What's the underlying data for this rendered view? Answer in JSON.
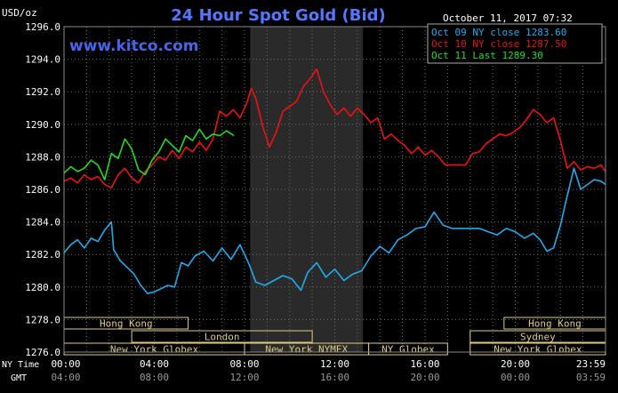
{
  "header": {
    "unit": "USD/oz",
    "title": "24 Hour Spot Gold (Bid)",
    "date": "October 11, 2017 07:32",
    "watermark": "www.kitco.com"
  },
  "colors": {
    "background": "#000000",
    "grid": "#6e6e6e",
    "title": "#5577ff",
    "watermark": "#4466ee",
    "series_oct09": "#22aaee",
    "series_oct10": "#ee1111",
    "series_oct11": "#22dd22",
    "nymex_band": "#2a2a2a",
    "market_box": "#ddcc88"
  },
  "chart_data": {
    "type": "line",
    "title": "24 Hour Spot Gold (Bid)",
    "ylabel": "USD/oz",
    "ylim": [
      1276.0,
      1296.0
    ],
    "yticks": [
      "1276.0",
      "1278.0",
      "1280.0",
      "1282.0",
      "1284.0",
      "1286.0",
      "1288.0",
      "1290.0",
      "1292.0",
      "1294.0",
      "1296.0"
    ],
    "xlim_hours": [
      0,
      24
    ],
    "x_ticks_ny": [
      "00:00",
      "04:00",
      "08:00",
      "12:00",
      "16:00",
      "20:00",
      "23:59"
    ],
    "x_ticks_gmt": [
      "04:00",
      "08:00",
      "12:00",
      "16:00",
      "20:00",
      "00:00",
      "03:59"
    ],
    "x_axis_labels": {
      "ny": "NY Time",
      "gmt": "GMT"
    },
    "legend_position": "top-right",
    "legend": [
      {
        "text": "Oct 09 NY close 1283.60",
        "series": 0
      },
      {
        "text": "Oct 10 NY close 1287.50",
        "series": 1
      },
      {
        "text": "Oct 11 Last 1289.30",
        "series": 2
      }
    ],
    "series": [
      {
        "name": "Oct 09",
        "x": [
          0,
          0.3,
          0.6,
          0.9,
          1.2,
          1.5,
          1.8,
          2.1,
          2.2,
          2.5,
          2.8,
          3.1,
          3.4,
          3.7,
          4,
          4.3,
          4.6,
          4.9,
          5.2,
          5.5,
          5.8,
          6.2,
          6.6,
          7,
          7.4,
          7.8,
          8.2,
          8.5,
          8.9,
          9.3,
          9.7,
          10.1,
          10.5,
          10.8,
          11.2,
          11.6,
          12,
          12.4,
          12.8,
          13.2,
          13.6,
          14,
          14.4,
          14.8,
          15.2,
          15.6,
          16,
          16.4,
          16.8,
          17.2,
          17.6,
          18,
          18.4,
          18.8,
          19.2,
          19.6,
          20,
          20.4,
          20.8,
          21.1,
          21.4,
          21.7,
          22,
          22.3,
          22.6,
          22.9,
          23.2,
          23.5,
          23.8,
          24
        ],
        "values": [
          1282.1,
          1282.6,
          1282.9,
          1282.4,
          1283.0,
          1282.8,
          1283.5,
          1284.0,
          1282.3,
          1281.6,
          1281.2,
          1280.8,
          1280.1,
          1279.6,
          1279.7,
          1279.9,
          1280.1,
          1280.0,
          1281.5,
          1281.3,
          1281.9,
          1282.2,
          1281.6,
          1282.4,
          1281.7,
          1282.6,
          1281.4,
          1280.3,
          1280.1,
          1280.4,
          1280.7,
          1280.5,
          1279.8,
          1280.9,
          1281.5,
          1280.6,
          1281.1,
          1280.4,
          1280.8,
          1281.0,
          1281.9,
          1282.5,
          1282.1,
          1282.9,
          1283.2,
          1283.6,
          1283.7,
          1284.6,
          1283.8,
          1283.6,
          1283.6,
          1283.6,
          1283.6,
          1283.4,
          1283.2,
          1283.6,
          1283.4,
          1283.0,
          1283.3,
          1282.9,
          1282.2,
          1282.4,
          1283.8,
          1285.6,
          1287.3,
          1286.0,
          1286.3,
          1286.6,
          1286.5,
          1286.3
        ]
      },
      {
        "name": "Oct 10",
        "x": [
          0,
          0.3,
          0.6,
          0.9,
          1.2,
          1.5,
          1.8,
          2.1,
          2.4,
          2.7,
          3.0,
          3.3,
          3.6,
          3.9,
          4.2,
          4.5,
          4.8,
          5.1,
          5.4,
          5.7,
          6.0,
          6.3,
          6.6,
          6.9,
          7.2,
          7.5,
          7.8,
          8.1,
          8.3,
          8.5,
          8.8,
          9.1,
          9.4,
          9.7,
          10.0,
          10.3,
          10.6,
          10.9,
          11.2,
          11.5,
          11.8,
          12.1,
          12.4,
          12.7,
          13.0,
          13.3,
          13.6,
          13.9,
          14.2,
          14.5,
          14.8,
          15.1,
          15.4,
          15.7,
          16.0,
          16.3,
          16.6,
          16.9,
          17.2,
          17.5,
          17.8,
          18.1,
          18.4,
          18.7,
          19.0,
          19.3,
          19.6,
          19.9,
          20.2,
          20.5,
          20.8,
          21.1,
          21.4,
          21.7,
          22.0,
          22.3,
          22.6,
          22.9,
          23.2,
          23.5,
          23.8,
          24.0
        ],
        "values": [
          1286.5,
          1286.7,
          1286.4,
          1286.9,
          1286.6,
          1286.8,
          1286.3,
          1286.1,
          1286.9,
          1287.3,
          1286.7,
          1286.4,
          1287.1,
          1287.5,
          1288.0,
          1287.8,
          1288.4,
          1287.9,
          1288.6,
          1288.3,
          1288.9,
          1288.4,
          1289.1,
          1290.8,
          1290.5,
          1290.9,
          1290.4,
          1291.3,
          1292.2,
          1291.6,
          1289.9,
          1288.6,
          1289.5,
          1290.8,
          1291.1,
          1291.4,
          1292.3,
          1292.8,
          1293.4,
          1292.0,
          1291.2,
          1290.6,
          1291.0,
          1290.5,
          1291.0,
          1290.6,
          1290.1,
          1290.4,
          1289.1,
          1289.4,
          1289.0,
          1288.7,
          1288.2,
          1288.6,
          1288.1,
          1288.4,
          1288.0,
          1287.5,
          1287.5,
          1287.5,
          1287.5,
          1288.2,
          1288.3,
          1288.8,
          1289.1,
          1289.4,
          1289.3,
          1289.5,
          1289.8,
          1290.3,
          1290.9,
          1290.6,
          1290.1,
          1290.4,
          1289.0,
          1287.3,
          1287.7,
          1287.2,
          1287.4,
          1287.3,
          1287.5,
          1287.1
        ]
      },
      {
        "name": "Oct 11",
        "x": [
          0,
          0.3,
          0.6,
          0.9,
          1.2,
          1.5,
          1.8,
          2.1,
          2.4,
          2.7,
          3.0,
          3.3,
          3.6,
          3.9,
          4.2,
          4.5,
          4.8,
          5.1,
          5.4,
          5.7,
          6.0,
          6.3,
          6.6,
          6.9,
          7.2,
          7.53
        ],
        "values": [
          1287.0,
          1287.4,
          1287.1,
          1287.3,
          1287.8,
          1287.5,
          1286.6,
          1288.2,
          1287.9,
          1289.1,
          1288.5,
          1287.2,
          1286.9,
          1287.8,
          1288.3,
          1289.1,
          1288.7,
          1288.3,
          1289.3,
          1289.0,
          1289.7,
          1289.1,
          1289.4,
          1289.3,
          1289.6,
          1289.3
        ]
      }
    ],
    "market_sessions": [
      {
        "name": "Hong Kong",
        "start": 0,
        "end": 5.5,
        "row": 1
      },
      {
        "name": "London",
        "start": 3,
        "end": 11,
        "row": 2
      },
      {
        "name": "New York Globex",
        "start": 0,
        "end": 8,
        "row": 3
      },
      {
        "name": "New York NYMEX",
        "start": 8,
        "end": 13.5,
        "row": 3
      },
      {
        "name": "NY Globex",
        "start": 13.5,
        "end": 17,
        "row": 3
      },
      {
        "name": "Hong Kong",
        "start": 19.5,
        "end": 24,
        "row": 1
      },
      {
        "name": "Sydney",
        "start": 18,
        "end": 24,
        "row": 2
      },
      {
        "name": "New York Globex",
        "start": 18,
        "end": 24,
        "row": 3
      }
    ],
    "nymex_band_hours": [
      8.25,
      13.25
    ]
  }
}
